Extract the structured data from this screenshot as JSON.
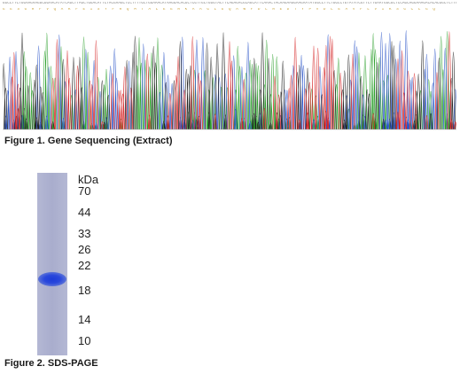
{
  "figure1": {
    "caption": "Figure 1. Gene Sequencing (Extract)",
    "dna_sequence": "GGCCTTCTGGAAGAAGGCGGAACATATCAGCTTAGCTGGACATTCTACGAAGCTCCTTTTGCTGGAAACATAAGGACACGCTCGTTGCTGGGTACTTCAGAGACGCAGCATTCAAACTACAAGAAGGAAGAATATGGCCTTCTGGCCTGTATATCGTTCTTGAATGGCGCTCCAGCAGGAAAGACACACGGCTCTTCTCCTGGAGCCAACCTGAACATGGC",
    "aa_sequence": "G E S G R F V Q A K F E I S Y F R Q M T A L E E R K A A G L G Q A W F D L R E D T Y P V D L E A V F L V I K S G C L G Q"
  },
  "figure2": {
    "caption": "Figure 2. SDS-PAGE",
    "unit_label": "kDa",
    "markers": [
      "70",
      "44",
      "33",
      "26",
      "22",
      "18",
      "14",
      "10"
    ]
  },
  "trace_colors": {
    "A": "#2ca02c",
    "C": "#2b55c8",
    "G": "#222222",
    "T": "#d62728"
  }
}
